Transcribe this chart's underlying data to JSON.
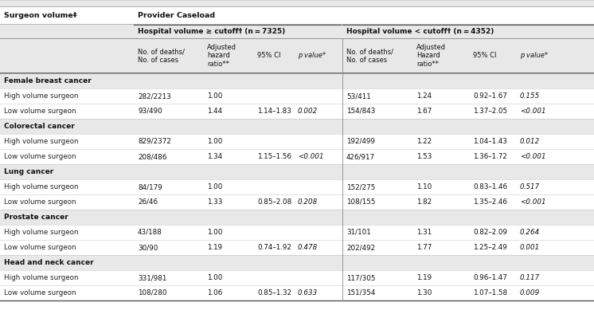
{
  "col1_header": "Surgeon volume‡",
  "col2_header": "Provider Caseload",
  "sub_header_left": "Hospital volume ≥ cutoff† (n = 7325)",
  "sub_header_right": "Hospital volume < cutoff† (n = 4352)",
  "col_headers_left": [
    "No. of deaths/\nNo. of cases",
    "Adjusted\nhazard\nratio**",
    "95% CI",
    "p value*"
  ],
  "col_headers_right": [
    "No. of deaths/\nNo. of cases",
    "Adjusted\nHazard\nratio**",
    "95% CI",
    "p value*"
  ],
  "sections": [
    {
      "name": "Female breast cancer",
      "rows": [
        [
          "High volume surgeon",
          "282/2213",
          "1.00",
          "",
          "",
          "53/411",
          "1.24",
          "0.92–1.67",
          "0.155"
        ],
        [
          "Low volume surgeon",
          "93/490",
          "1.44",
          "1.14–1.83",
          "0.002",
          "154/843",
          "1.67",
          "1.37–2.05",
          "<0.001"
        ]
      ]
    },
    {
      "name": "Colorectal cancer",
      "rows": [
        [
          "High volume surgeon",
          "829/2372",
          "1.00",
          "",
          "",
          "192/499",
          "1.22",
          "1.04–1.43",
          "0.012"
        ],
        [
          "Low volume surgeon",
          "208/486",
          "1.34",
          "1.15–1.56",
          "<0.001",
          "426/917",
          "1.53",
          "1.36–1.72",
          "<0.001"
        ]
      ]
    },
    {
      "name": "Lung cancer",
      "rows": [
        [
          "High volume surgeon",
          "84/179",
          "1.00",
          "",
          "",
          "152/275",
          "1.10",
          "0.83–1.46",
          "0.517"
        ],
        [
          "Low volume surgeon",
          "26/46",
          "1.33",
          "0.85–2.08",
          "0.208",
          "108/155",
          "1.82",
          "1.35–2.46",
          "<0.001"
        ]
      ]
    },
    {
      "name": "Prostate cancer",
      "rows": [
        [
          "High volume surgeon",
          "43/188",
          "1.00",
          "",
          "",
          "31/101",
          "1.31",
          "0.82–2.09",
          "0.264"
        ],
        [
          "Low volume surgeon",
          "30/90",
          "1.19",
          "0.74–1.92",
          "0.478",
          "202/492",
          "1.77",
          "1.25–2.49",
          "0.001"
        ]
      ]
    },
    {
      "name": "Head and neck cancer",
      "rows": [
        [
          "High volume surgeon",
          "331/981",
          "1.00",
          "",
          "",
          "117/305",
          "1.19",
          "0.96–1.47",
          "0.117"
        ],
        [
          "Low volume surgeon",
          "108/280",
          "1.06",
          "0.85–1.32",
          "0.633",
          "151/354",
          "1.30",
          "1.07–1.58",
          "0.009"
        ]
      ]
    }
  ]
}
